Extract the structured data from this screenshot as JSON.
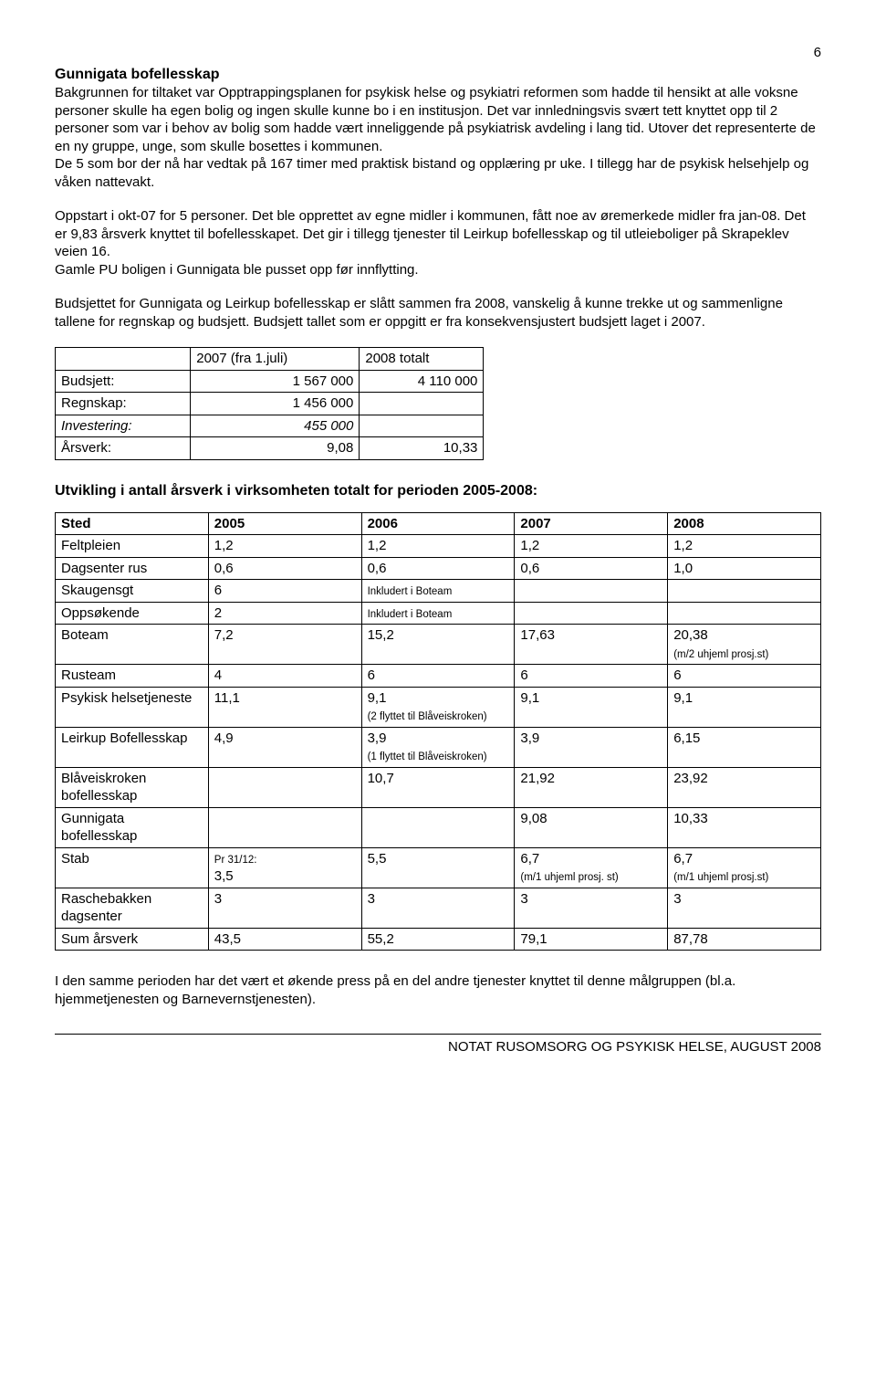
{
  "page_number": "6",
  "heading": "Gunnigata bofellesskap",
  "para1": "Bakgrunnen for tiltaket var Opptrappingsplanen for psykisk helse og psykiatri reformen som hadde til hensikt at alle voksne personer skulle ha egen bolig og ingen skulle kunne bo i en institusjon. Det var innledningsvis svært tett knyttet opp til 2 personer som var i behov av bolig som hadde vært inneliggende på psykiatrisk avdeling i lang tid. Utover det representerte de en ny gruppe, unge, som skulle bosettes i kommunen.",
  "para1b": "De 5 som bor der nå har vedtak på 167 timer med praktisk bistand og opplæring pr uke. I tillegg har de psykisk helsehjelp og våken nattevakt.",
  "para2": "Oppstart i okt-07 for 5 personer. Det ble opprettet av egne midler i kommunen, fått noe av øremerkede midler fra jan-08. Det er 9,83 årsverk knyttet til bofellesskapet. Det gir i tillegg tjenester til Leirkup bofellesskap og til utleieboliger på Skrapeklev veien 16.",
  "para2b": "Gamle PU boligen i Gunnigata ble pusset opp før innflytting.",
  "para3": "Budsjettet for Gunnigata og Leirkup bofellesskap er slått sammen fra 2008, vanskelig å kunne trekke ut og sammenligne tallene for regnskap og budsjett. Budsjett tallet som er oppgitt er fra konsekvensjustert budsjett laget i 2007.",
  "table1": {
    "headers": [
      "",
      "2007 (fra 1.juli)",
      "2008 totalt"
    ],
    "rows": [
      {
        "label": "Budsjett:",
        "c1": "1 567 000",
        "c2": "4 110 000"
      },
      {
        "label": "Regnskap:",
        "c1": "1 456 000",
        "c2": ""
      },
      {
        "label": "Investering:",
        "c1": "455 000",
        "c2": "",
        "italic": true
      },
      {
        "label": "Årsverk:",
        "c1": "9,08",
        "c2": "10,33"
      }
    ]
  },
  "subheading2": "Utvikling i antall årsverk i virksomheten totalt for perioden 2005-2008:",
  "table2": {
    "headers": [
      "Sted",
      "2005",
      "2006",
      "2007",
      "2008"
    ],
    "rows": [
      {
        "c0": "Feltpleien",
        "c1": "1,2",
        "c2": "1,2",
        "c3": "1,2",
        "c4": "1,2"
      },
      {
        "c0": "Dagsenter rus",
        "c1": "0,6",
        "c2": "0,6",
        "c3": "0,6",
        "c4": "1,0"
      },
      {
        "c0": "Skaugensgt",
        "c1": "6",
        "c2_note": "Inkludert i Boteam",
        "c3": "",
        "c4": ""
      },
      {
        "c0": "Oppsøkende",
        "c1": "2",
        "c2_note": "Inkludert i Boteam",
        "c3": "",
        "c4": ""
      },
      {
        "c0": "Boteam",
        "c1": "7,2",
        "c2": "15,2",
        "c3": "17,63",
        "c4": "20,38",
        "c4_note": "(m/2 uhjeml prosj.st)"
      },
      {
        "c0": "Rusteam",
        "c1": "4",
        "c2": "6",
        "c3": "6",
        "c4": "6"
      },
      {
        "c0": "Psykisk helsetjeneste",
        "c1": "11,1",
        "c2": "9,1",
        "c2_note": "(2 flyttet til Blåveiskroken)",
        "c3": "9,1",
        "c4": "9,1"
      },
      {
        "c0": "Leirkup Bofellesskap",
        "c1": "4,9",
        "c2": "3,9",
        "c2_note": "(1 flyttet til Blåveiskroken)",
        "c3": "3,9",
        "c4": "6,15"
      },
      {
        "c0": "Blåveiskroken bofellesskap",
        "c1": "",
        "c2": "10,7",
        "c3": "21,92",
        "c4": "23,92"
      },
      {
        "c0": "Gunnigata bofellesskap",
        "c1": "",
        "c2": "",
        "c3": "9,08",
        "c4": "10,33"
      },
      {
        "c0": "Stab",
        "c1_note_pre": "Pr 31/12:",
        "c1": "3,5",
        "c2": "5,5",
        "c3": "6,7",
        "c3_note": "(m/1 uhjeml prosj. st)",
        "c4": "6,7",
        "c4_note": "(m/1 uhjeml prosj.st)"
      },
      {
        "c0": "Raschebakken dagsenter",
        "c1": "3",
        "c2": "3",
        "c3": "3",
        "c4": "3"
      },
      {
        "c0": "Sum årsverk",
        "c1": "43,5",
        "c2": "55,2",
        "c3": "79,1",
        "c4": "87,78",
        "bold": true
      }
    ]
  },
  "para4": "I den samme perioden har det vært et økende press på en del andre tjenester knyttet til denne målgruppen (bl.a. hjemmetjenesten og Barnevernstjenesten).",
  "footer": "NOTAT RUSOMSORG OG PSYKISK HELSE, AUGUST 2008"
}
